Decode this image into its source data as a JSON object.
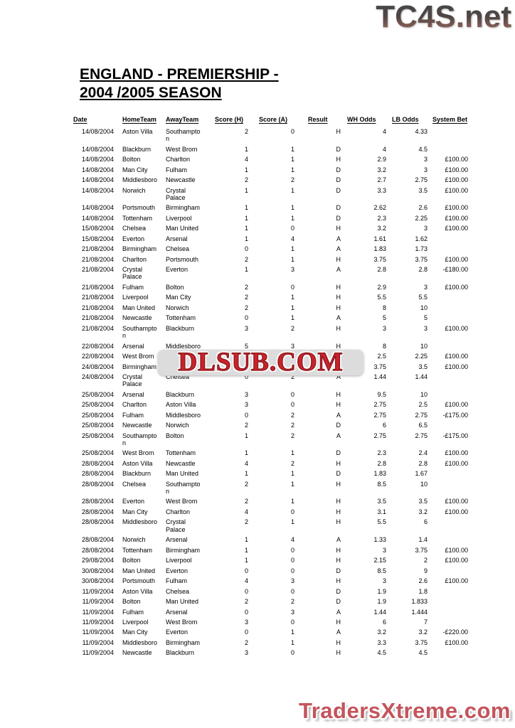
{
  "branding": {
    "header_logo": "TC4S.net",
    "watermark": "DLSUB.COM",
    "footer_logo": "TradersXtreme.com"
  },
  "title": {
    "line1": "ENGLAND - PREMIERSHIP -",
    "line2": "2004 /2005 SEASON"
  },
  "colors": {
    "watermark_red": "#c8242b",
    "footer_logo_red": "#c4545c",
    "header_logo_gradient_top": "#47474a",
    "header_logo_gradient_bottom": "#97685f",
    "text": "#000000",
    "background": "#ffffff"
  },
  "table": {
    "columns": [
      "Date",
      "HomeTeam",
      "AwayTeam",
      "Score (H)",
      "Score (A)",
      "Result",
      "WH Odds",
      "LB Odds",
      "System Bet"
    ],
    "rows": [
      [
        "14/08/2004",
        "Aston Villa",
        "Southampton",
        "2",
        "0",
        "H",
        "4",
        "4.33",
        ""
      ],
      [
        "14/08/2004",
        "Blackburn",
        "West Brom",
        "1",
        "1",
        "D",
        "4",
        "4.5",
        ""
      ],
      [
        "14/08/2004",
        "Bolton",
        "Charlton",
        "4",
        "1",
        "H",
        "2.9",
        "3",
        "£100.00"
      ],
      [
        "14/08/2004",
        "Man City",
        "Fulham",
        "1",
        "1",
        "D",
        "3.2",
        "3",
        "£100.00"
      ],
      [
        "14/08/2004",
        "Middlesboro",
        "Newcastle",
        "2",
        "2",
        "D",
        "2.7",
        "2.75",
        "£100.00"
      ],
      [
        "14/08/2004",
        "Norwich",
        "Crystal Palace",
        "1",
        "1",
        "D",
        "3.3",
        "3.5",
        "£100.00"
      ],
      [
        "14/08/2004",
        "Portsmouth",
        "Birmingham",
        "1",
        "1",
        "D",
        "2.62",
        "2.6",
        "£100.00"
      ],
      [
        "14/08/2004",
        "Tottenham",
        "Liverpool",
        "1",
        "1",
        "D",
        "2.3",
        "2.25",
        "£100.00"
      ],
      [
        "15/08/2004",
        "Chelsea",
        "Man United",
        "1",
        "0",
        "H",
        "3.2",
        "3",
        "£100.00"
      ],
      [
        "15/08/2004",
        "Everton",
        "Arsenal",
        "1",
        "4",
        "A",
        "1.61",
        "1.62",
        ""
      ],
      [
        "21/08/2004",
        "Birmingham",
        "Chelsea",
        "0",
        "1",
        "A",
        "1.83",
        "1.73",
        ""
      ],
      [
        "21/08/2004",
        "Charlton",
        "Portsmouth",
        "2",
        "1",
        "H",
        "3.75",
        "3.75",
        "£100.00"
      ],
      [
        "21/08/2004",
        "Crystal Palace",
        "Everton",
        "1",
        "3",
        "A",
        "2.8",
        "2.8",
        "-£180.00"
      ],
      [
        "21/08/2004",
        "Fulham",
        "Bolton",
        "2",
        "0",
        "H",
        "2.9",
        "3",
        "£100.00"
      ],
      [
        "21/08/2004",
        "Liverpool",
        "Man City",
        "2",
        "1",
        "H",
        "5.5",
        "5.5",
        ""
      ],
      [
        "21/08/2004",
        "Man United",
        "Norwich",
        "2",
        "1",
        "H",
        "8",
        "10",
        ""
      ],
      [
        "21/08/2004",
        "Newcastle",
        "Tottenham",
        "0",
        "1",
        "A",
        "5",
        "5",
        ""
      ],
      [
        "21/08/2004",
        "Southampton",
        "Blackburn",
        "3",
        "2",
        "H",
        "3",
        "3",
        "£100.00"
      ],
      [
        "22/08/2004",
        "Arsenal",
        "Middlesboro",
        "5",
        "3",
        "H",
        "8",
        "10",
        ""
      ],
      [
        "22/08/2004",
        "West Brom",
        "Aston Villa",
        "1",
        "1",
        "D",
        "2.5",
        "2.25",
        "£100.00"
      ],
      [
        "24/08/2004",
        "Birmingham",
        "Man City",
        "1",
        "0",
        "H",
        "3.75",
        "3.5",
        "£100.00"
      ],
      [
        "24/08/2004",
        "Crystal Palace",
        "Chelsea",
        "0",
        "2",
        "A",
        "1.44",
        "1.44",
        ""
      ],
      [
        "25/08/2004",
        "Arsenal",
        "Blackburn",
        "3",
        "0",
        "H",
        "9.5",
        "10",
        ""
      ],
      [
        "25/08/2004",
        "Charlton",
        "Aston Villa",
        "3",
        "0",
        "H",
        "2.75",
        "2.5",
        "£100.00"
      ],
      [
        "25/08/2004",
        "Fulham",
        "Middlesboro",
        "0",
        "2",
        "A",
        "2.75",
        "2.75",
        "-£175.00"
      ],
      [
        "25/08/2004",
        "Newcastle",
        "Norwich",
        "2",
        "2",
        "D",
        "6",
        "6.5",
        ""
      ],
      [
        "25/08/2004",
        "Southampton",
        "Bolton",
        "1",
        "2",
        "A",
        "2.75",
        "2.75",
        "-£175.00"
      ],
      [
        "25/08/2004",
        "West Brom",
        "Tottenham",
        "1",
        "1",
        "D",
        "2.3",
        "2.4",
        "£100.00"
      ],
      [
        "28/08/2004",
        "Aston Villa",
        "Newcastle",
        "4",
        "2",
        "H",
        "2.8",
        "2.8",
        "£100.00"
      ],
      [
        "28/08/2004",
        "Blackburn",
        "Man United",
        "1",
        "1",
        "D",
        "1.83",
        "1.67",
        ""
      ],
      [
        "28/08/2004",
        "Chelsea",
        "Southampton",
        "2",
        "1",
        "H",
        "8.5",
        "10",
        ""
      ],
      [
        "28/08/2004",
        "Everton",
        "West Brom",
        "2",
        "1",
        "H",
        "3.5",
        "3.5",
        "£100.00"
      ],
      [
        "28/08/2004",
        "Man City",
        "Charlton",
        "4",
        "0",
        "H",
        "3.1",
        "3.2",
        "£100.00"
      ],
      [
        "28/08/2004",
        "Middlesboro",
        "Crystal Palace",
        "2",
        "1",
        "H",
        "5.5",
        "6",
        ""
      ],
      [
        "28/08/2004",
        "Norwich",
        "Arsenal",
        "1",
        "4",
        "A",
        "1.33",
        "1.4",
        ""
      ],
      [
        "28/08/2004",
        "Tottenham",
        "Birmingham",
        "1",
        "0",
        "H",
        "3",
        "3.75",
        "£100.00"
      ],
      [
        "29/08/2004",
        "Bolton",
        "Liverpool",
        "1",
        "0",
        "H",
        "2.15",
        "2",
        "£100.00"
      ],
      [
        "30/08/2004",
        "Man United",
        "Everton",
        "0",
        "0",
        "D",
        "8.5",
        "9",
        ""
      ],
      [
        "30/08/2004",
        "Portsmouth",
        "Fulham",
        "4",
        "3",
        "H",
        "3",
        "2.6",
        "£100.00"
      ],
      [
        "11/09/2004",
        "Aston Villa",
        "Chelsea",
        "0",
        "0",
        "D",
        "1.9",
        "1.8",
        ""
      ],
      [
        "11/09/2004",
        "Bolton",
        "Man United",
        "2",
        "2",
        "D",
        "1.9",
        "1.833",
        ""
      ],
      [
        "11/09/2004",
        "Fulham",
        "Arsenal",
        "0",
        "3",
        "A",
        "1.44",
        "1.444",
        ""
      ],
      [
        "11/09/2004",
        "Liverpool",
        "West Brom",
        "3",
        "0",
        "H",
        "6",
        "7",
        ""
      ],
      [
        "11/09/2004",
        "Man City",
        "Everton",
        "0",
        "1",
        "A",
        "3.2",
        "3.2",
        "-£220.00"
      ],
      [
        "11/09/2004",
        "Middlesboro",
        "Birmingham",
        "2",
        "1",
        "H",
        "3.3",
        "3.75",
        "£100.00"
      ],
      [
        "11/09/2004",
        "Newcastle",
        "Blackburn",
        "3",
        "0",
        "H",
        "4.5",
        "4.5",
        ""
      ]
    ]
  }
}
